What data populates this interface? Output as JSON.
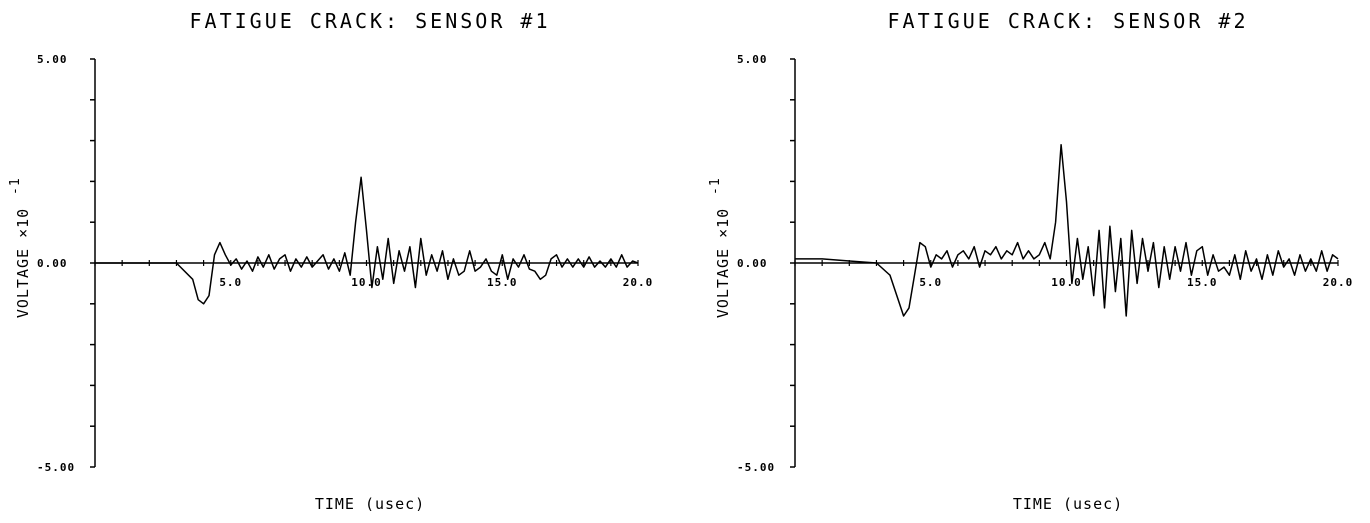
{
  "chart_data": [
    {
      "type": "line",
      "title": "FATIGUE CRACK: SENSOR #1",
      "xlabel": "TIME (usec)",
      "ylabel": "VOLTAGE ×10",
      "ylabel_exponent": "-1",
      "xlim": [
        0,
        20
      ],
      "ylim": [
        -5,
        5
      ],
      "x_ticks": [
        0,
        1,
        2,
        3,
        4,
        5,
        6,
        7,
        8,
        9,
        10,
        11,
        12,
        13,
        14,
        15,
        16,
        17,
        18,
        19,
        20
      ],
      "x_tick_labels": [
        {
          "value": 5,
          "label": "5.0"
        },
        {
          "value": 10,
          "label": "10.0"
        },
        {
          "value": 15,
          "label": "15.0"
        },
        {
          "value": 20,
          "label": "20.0"
        }
      ],
      "y_ticks": [
        -5,
        -4,
        -3,
        -2,
        -1,
        0,
        1,
        2,
        3,
        4,
        5
      ],
      "y_tick_labels": [
        {
          "value": 5,
          "label": "5.00"
        },
        {
          "value": 0,
          "label": "0.00"
        },
        {
          "value": -5,
          "label": "-5.00"
        }
      ],
      "grid": false,
      "series": [
        {
          "x": [
            0,
            1,
            2,
            3,
            3.6,
            3.8,
            4.0,
            4.2,
            4.4,
            4.6,
            4.8,
            5.0,
            5.2,
            5.4,
            5.6,
            5.8,
            6.0,
            6.2,
            6.4,
            6.6,
            6.8,
            7.0,
            7.2,
            7.4,
            7.6,
            7.8,
            8.0,
            8.2,
            8.4,
            8.6,
            8.8,
            9.0,
            9.2,
            9.4,
            9.6,
            9.8,
            10.0,
            10.2,
            10.4,
            10.6,
            10.8,
            11.0,
            11.2,
            11.4,
            11.6,
            11.8,
            12.0,
            12.2,
            12.4,
            12.6,
            12.8,
            13.0,
            13.2,
            13.4,
            13.6,
            13.8,
            14.0,
            14.2,
            14.4,
            14.6,
            14.8,
            15.0,
            15.2,
            15.4,
            15.6,
            15.8,
            16.0,
            16.2,
            16.4,
            16.6,
            16.8,
            17.0,
            17.2,
            17.4,
            17.6,
            17.8,
            18.0,
            18.2,
            18.4,
            18.6,
            18.8,
            19.0,
            19.2,
            19.4,
            19.6,
            19.8,
            20.0
          ],
          "y": [
            0,
            0,
            0,
            0,
            -0.4,
            -0.9,
            -1.0,
            -0.8,
            0.2,
            0.5,
            0.2,
            -0.05,
            0.1,
            -0.15,
            0.05,
            -0.2,
            0.15,
            -0.1,
            0.2,
            -0.15,
            0.1,
            0.2,
            -0.2,
            0.1,
            -0.1,
            0.15,
            -0.1,
            0.05,
            0.2,
            -0.15,
            0.1,
            -0.2,
            0.25,
            -0.3,
            1.0,
            2.1,
            0.8,
            -0.6,
            0.4,
            -0.4,
            0.6,
            -0.5,
            0.3,
            -0.2,
            0.4,
            -0.6,
            0.6,
            -0.3,
            0.2,
            -0.2,
            0.3,
            -0.4,
            0.1,
            -0.3,
            -0.2,
            0.3,
            -0.2,
            -0.1,
            0.1,
            -0.2,
            -0.3,
            0.2,
            -0.4,
            0.1,
            -0.1,
            0.2,
            -0.15,
            -0.2,
            -0.4,
            -0.3,
            0.1,
            0.2,
            -0.1,
            0.1,
            -0.1,
            0.1,
            -0.1,
            0.15,
            -0.1,
            0.05,
            -0.1,
            0.1,
            -0.1,
            0.2,
            -0.1,
            0.05,
            0
          ]
        }
      ]
    },
    {
      "type": "line",
      "title": "FATIGUE CRACK: SENSOR #2",
      "xlabel": "TIME (usec)",
      "ylabel": "VOLTAGE ×10",
      "ylabel_exponent": "-1",
      "xlim": [
        0,
        20
      ],
      "ylim": [
        -5,
        5
      ],
      "x_ticks": [
        0,
        1,
        2,
        3,
        4,
        5,
        6,
        7,
        8,
        9,
        10,
        11,
        12,
        13,
        14,
        15,
        16,
        17,
        18,
        19,
        20
      ],
      "x_tick_labels": [
        {
          "value": 5,
          "label": "5.0"
        },
        {
          "value": 10,
          "label": "10.0"
        },
        {
          "value": 15,
          "label": "15.0"
        },
        {
          "value": 20,
          "label": "20.0"
        }
      ],
      "y_ticks": [
        -5,
        -4,
        -3,
        -2,
        -1,
        0,
        1,
        2,
        3,
        4,
        5
      ],
      "y_tick_labels": [
        {
          "value": 5,
          "label": "5.00"
        },
        {
          "value": 0,
          "label": "0.00"
        },
        {
          "value": -5,
          "label": "-5.00"
        }
      ],
      "grid": false,
      "series": [
        {
          "x": [
            0,
            1,
            2,
            3,
            3.5,
            3.8,
            4.0,
            4.2,
            4.4,
            4.6,
            4.8,
            5.0,
            5.2,
            5.4,
            5.6,
            5.8,
            6.0,
            6.2,
            6.4,
            6.6,
            6.8,
            7.0,
            7.2,
            7.4,
            7.6,
            7.8,
            8.0,
            8.2,
            8.4,
            8.6,
            8.8,
            9.0,
            9.2,
            9.4,
            9.6,
            9.8,
            10.0,
            10.2,
            10.4,
            10.6,
            10.8,
            11.0,
            11.2,
            11.4,
            11.6,
            11.8,
            12.0,
            12.2,
            12.4,
            12.6,
            12.8,
            13.0,
            13.2,
            13.4,
            13.6,
            13.8,
            14.0,
            14.2,
            14.4,
            14.6,
            14.8,
            15.0,
            15.2,
            15.4,
            15.6,
            15.8,
            16.0,
            16.2,
            16.4,
            16.6,
            16.8,
            17.0,
            17.2,
            17.4,
            17.6,
            17.8,
            18.0,
            18.2,
            18.4,
            18.6,
            18.8,
            19.0,
            19.2,
            19.4,
            19.6,
            19.8,
            20.0
          ],
          "y": [
            0.1,
            0.1,
            0.05,
            0,
            -0.3,
            -0.9,
            -1.3,
            -1.1,
            -0.3,
            0.5,
            0.4,
            -0.1,
            0.2,
            0.1,
            0.3,
            -0.1,
            0.2,
            0.3,
            0.1,
            0.4,
            -0.1,
            0.3,
            0.2,
            0.4,
            0.1,
            0.3,
            0.2,
            0.5,
            0.1,
            0.3,
            0.1,
            0.2,
            0.5,
            0.1,
            1.0,
            2.9,
            1.5,
            -0.5,
            0.6,
            -0.4,
            0.4,
            -0.8,
            0.8,
            -1.1,
            0.9,
            -0.7,
            0.6,
            -1.3,
            0.8,
            -0.5,
            0.6,
            -0.2,
            0.5,
            -0.6,
            0.4,
            -0.4,
            0.4,
            -0.2,
            0.5,
            -0.3,
            0.3,
            0.4,
            -0.3,
            0.2,
            -0.2,
            -0.1,
            -0.3,
            0.2,
            -0.4,
            0.3,
            -0.2,
            0.1,
            -0.4,
            0.2,
            -0.3,
            0.3,
            -0.1,
            0.1,
            -0.3,
            0.2,
            -0.2,
            0.1,
            -0.2,
            0.3,
            -0.2,
            0.2,
            0.1
          ]
        }
      ]
    }
  ]
}
